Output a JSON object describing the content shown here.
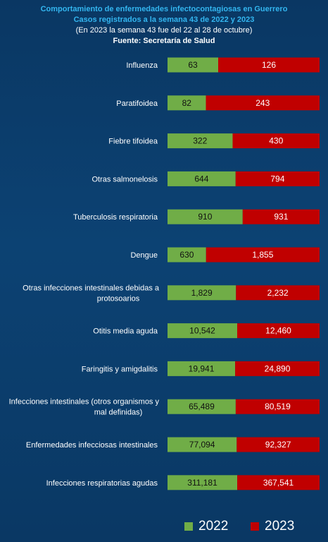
{
  "header": {
    "title": "Comportamiento de enfermedades infectocontagiosas en Guerrero",
    "subtitle": "Casos registrados a la semana 43 de 2022 y 2023",
    "note": "(En 2023 la semana 43 fue del 22 al 28 de octubre)",
    "source": "Fuente: Secretaría de Salud"
  },
  "colors": {
    "s2022": "#70ad47",
    "s2023": "#c00000",
    "background": "#0b3a66",
    "title": "#33b6f0"
  },
  "chart_data": {
    "type": "bar",
    "orientation": "horizontal",
    "stacking": "percent",
    "categories": [
      "Influenza",
      "Paratifoidea",
      "Fiebre tifoidea",
      "Otras salmonelosis",
      "Tuberculosis respiratoria",
      "Dengue",
      "Otras infecciones intestinales debidas a protosoarios",
      "Otitis media aguda",
      "Faringitis y amigdalitis",
      "Infecciones intestinales (otros organismos y mal definidas)",
      "Enfermedades infecciosas intestinales",
      "Infecciones respiratorias agudas"
    ],
    "category_display": [
      [
        "Influenza"
      ],
      [
        "Paratifoidea"
      ],
      [
        "Fiebre tifoidea"
      ],
      [
        "Otras salmonelosis"
      ],
      [
        "Tuberculosis respiratoria"
      ],
      [
        "Dengue"
      ],
      [
        "Otras infecciones intestinales debidas a",
        "protosoarios"
      ],
      [
        "Otitis media aguda"
      ],
      [
        "Faringitis y amigdalitis"
      ],
      [
        "Infecciones intestinales (otros organismos y",
        "mal definidas)"
      ],
      [
        "Enfermedades infecciosas intestinales"
      ],
      [
        "Infecciones respiratorias agudas"
      ]
    ],
    "series": [
      {
        "name": "2022",
        "values": [
          63,
          82,
          322,
          644,
          910,
          630,
          1829,
          10542,
          19941,
          65489,
          77094,
          311181
        ],
        "labels": [
          "63",
          "82",
          "322",
          "644",
          "910",
          "630",
          "1,829",
          "10,542",
          "19,941",
          "65,489",
          "77,094",
          "311,181"
        ]
      },
      {
        "name": "2023",
        "values": [
          126,
          243,
          430,
          794,
          931,
          1855,
          2232,
          12460,
          24890,
          80519,
          92327,
          367541
        ],
        "labels": [
          "126",
          "243",
          "430",
          "794",
          "931",
          "1,855",
          "2,232",
          "12,460",
          "24,890",
          "80,519",
          "92,327",
          "367,541"
        ]
      }
    ],
    "legend": {
      "position": "bottom",
      "items": [
        "2022",
        "2023"
      ]
    },
    "grid": false
  }
}
